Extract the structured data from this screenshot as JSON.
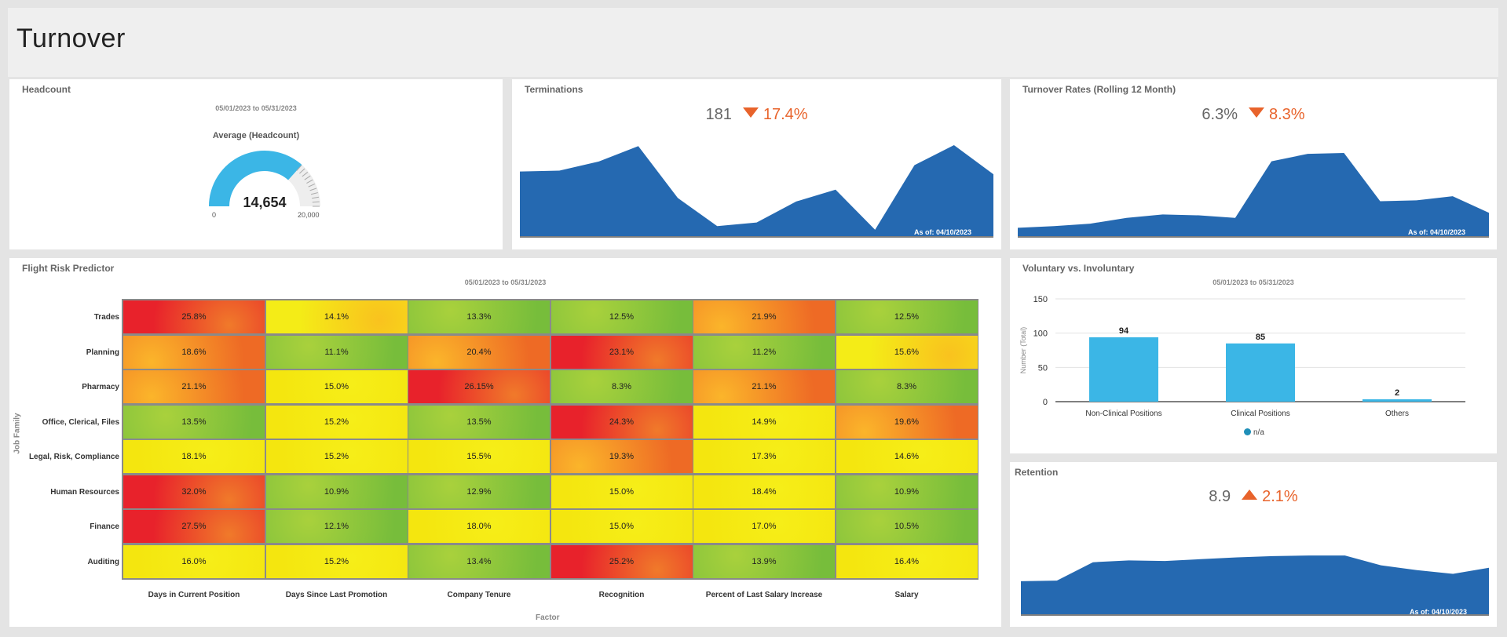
{
  "page": {
    "title": "Turnover"
  },
  "headcount": {
    "title": "Headcount",
    "date_range": "05/01/2023 to 05/31/2023",
    "gauge_label": "Average (Headcount)",
    "value_label": "14,654",
    "value": 14654,
    "min_label": "0",
    "max_label": "20,000",
    "max": 20000,
    "color": "#3bb6e6"
  },
  "terminations": {
    "title": "Terminations",
    "value": "181",
    "change": "17.4%",
    "direction": "down",
    "as_of": "As of: 04/10/2023",
    "series": [
      0.71,
      0.72,
      0.82,
      0.99,
      0.42,
      0.11,
      0.15,
      0.38,
      0.51,
      0.07,
      0.78,
      1.0,
      0.68
    ]
  },
  "turnover_rates": {
    "title": "Turnover Rates (Rolling 12 Month)",
    "value": "6.3%",
    "change": "8.3%",
    "direction": "down",
    "as_of": "As of: 04/10/2023",
    "series": [
      0.1,
      0.12,
      0.15,
      0.22,
      0.26,
      0.25,
      0.22,
      0.9,
      0.99,
      1.0,
      0.42,
      0.43,
      0.48,
      0.28
    ]
  },
  "flight_risk": {
    "title": "Flight Risk Predictor",
    "date_range": "05/01/2023 to 05/31/2023",
    "y_axis_label": "Job Family",
    "x_axis_label": "Factor",
    "chart_data": {
      "type": "heatmap",
      "rows": [
        "Trades",
        "Planning",
        "Pharmacy",
        "Office, Clerical, Files",
        "Legal, Risk, Compliance",
        "Human Resources",
        "Finance",
        "Auditing"
      ],
      "columns": [
        "Days in Current Position",
        "Days Since Last Promotion",
        "Company Tenure",
        "Recognition",
        "Percent of Last Salary Increase",
        "Salary"
      ],
      "values": [
        [
          "25.8%",
          "14.1%",
          "13.3%",
          "12.5%",
          "21.9%",
          "12.5%"
        ],
        [
          "18.6%",
          "11.1%",
          "20.4%",
          "23.1%",
          "11.2%",
          "15.6%"
        ],
        [
          "21.1%",
          "15.0%",
          "26.15%",
          "8.3%",
          "21.1%",
          "8.3%"
        ],
        [
          "13.5%",
          "15.2%",
          "13.5%",
          "24.3%",
          "14.9%",
          "19.6%"
        ],
        [
          "18.1%",
          "15.2%",
          "15.5%",
          "19.3%",
          "17.3%",
          "14.6%"
        ],
        [
          "32.0%",
          "10.9%",
          "12.9%",
          "15.0%",
          "18.4%",
          "10.9%"
        ],
        [
          "27.5%",
          "12.1%",
          "18.0%",
          "15.0%",
          "17.0%",
          "10.5%"
        ],
        [
          "16.0%",
          "15.2%",
          "13.4%",
          "25.2%",
          "13.9%",
          "16.4%"
        ]
      ],
      "colors": [
        [
          "red",
          "yellow-orange",
          "green",
          "green",
          "orange",
          "green"
        ],
        [
          "orange",
          "green",
          "orange",
          "red",
          "green",
          "yellow-orange"
        ],
        [
          "orange",
          "yellow",
          "red",
          "green",
          "orange",
          "green"
        ],
        [
          "green",
          "yellow",
          "green",
          "red",
          "yellow",
          "orange"
        ],
        [
          "yellow",
          "yellow",
          "yellow",
          "orange",
          "yellow",
          "yellow"
        ],
        [
          "red",
          "green",
          "green",
          "yellow",
          "yellow",
          "green"
        ],
        [
          "red",
          "green",
          "yellow",
          "yellow",
          "yellow",
          "green"
        ],
        [
          "yellow",
          "yellow",
          "green",
          "red",
          "green",
          "yellow"
        ]
      ]
    }
  },
  "voluntary": {
    "title": "Voluntary vs. Involuntary",
    "date_range": "05/01/2023 to 05/31/2023",
    "legend_label": "n/a",
    "chart_data": {
      "type": "bar",
      "categories": [
        "Non-Clinical Positions",
        "Clinical Positions",
        "Others"
      ],
      "values": [
        94,
        85,
        2
      ],
      "ylabel": "Number (Total)",
      "yticks": [
        0,
        50,
        100,
        150
      ],
      "ylim": [
        0,
        150
      ],
      "color": "#3bb6e6"
    }
  },
  "retention": {
    "title": "Retention",
    "value": "8.9",
    "change": "2.1%",
    "direction": "up",
    "as_of": "As of: 04/10/2023",
    "series": [
      0.54,
      0.55,
      0.85,
      0.88,
      0.87,
      0.9,
      0.93,
      0.95,
      0.96,
      0.96,
      0.8,
      0.72,
      0.66,
      0.76
    ]
  },
  "colors": {
    "area_blue": "#2569b1",
    "accent_orange": "#e8632b"
  }
}
